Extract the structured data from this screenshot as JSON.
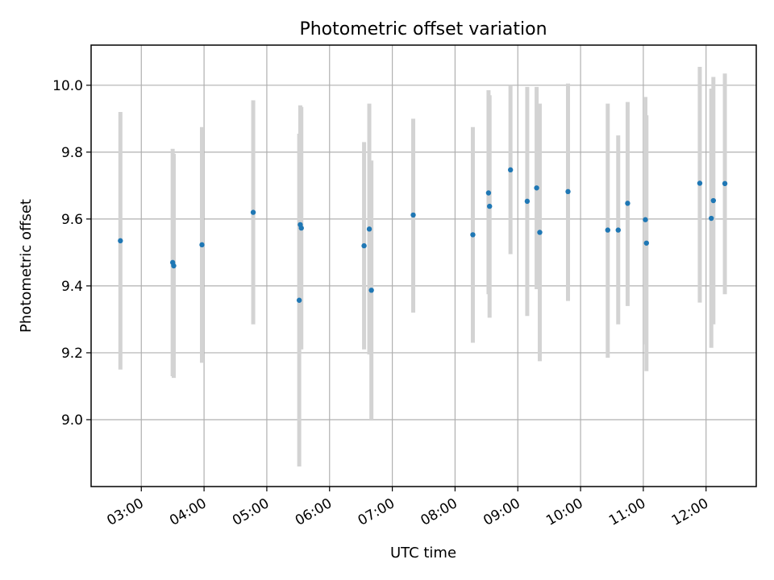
{
  "chart_data": {
    "type": "scatter",
    "title": "Photometric offset variation",
    "xlabel": "UTC time",
    "ylabel": "Photometric offset",
    "x_tick_labels": [
      "03:00",
      "04:00",
      "05:00",
      "06:00",
      "07:00",
      "08:00",
      "09:00",
      "10:00",
      "11:00",
      "12:00"
    ],
    "x_ticks_hours": [
      3,
      4,
      5,
      6,
      7,
      8,
      9,
      10,
      11,
      12
    ],
    "y_tick_labels": [
      "9.0",
      "9.2",
      "9.4",
      "9.6",
      "9.8",
      "10.0"
    ],
    "y_ticks": [
      9.0,
      9.2,
      9.4,
      9.6,
      9.8,
      10.0
    ],
    "xlim": [
      "02:12",
      "12:48"
    ],
    "ylim": [
      8.8,
      10.12
    ],
    "grid": true,
    "point_color": "#1f77b4",
    "errorbar_color": "#d3d3d3",
    "points": [
      {
        "time": "02:40",
        "y": 9.535,
        "lo": 9.15,
        "hi": 9.92
      },
      {
        "time": "03:30",
        "y": 9.47,
        "lo": 9.13,
        "hi": 9.81
      },
      {
        "time": "03:31",
        "y": 9.46,
        "lo": 9.125,
        "hi": 9.795
      },
      {
        "time": "03:58",
        "y": 9.523,
        "lo": 9.17,
        "hi": 9.875
      },
      {
        "time": "04:47",
        "y": 9.62,
        "lo": 9.285,
        "hi": 9.955
      },
      {
        "time": "05:31",
        "y": 9.357,
        "lo": 8.86,
        "hi": 9.855
      },
      {
        "time": "05:32",
        "y": 9.583,
        "lo": 9.225,
        "hi": 9.94
      },
      {
        "time": "05:33",
        "y": 9.573,
        "lo": 9.21,
        "hi": 9.935
      },
      {
        "time": "06:33",
        "y": 9.52,
        "lo": 9.21,
        "hi": 9.83
      },
      {
        "time": "06:38",
        "y": 9.57,
        "lo": 9.195,
        "hi": 9.945
      },
      {
        "time": "06:40",
        "y": 9.387,
        "lo": 9.0,
        "hi": 9.775
      },
      {
        "time": "07:20",
        "y": 9.612,
        "lo": 9.32,
        "hi": 9.9
      },
      {
        "time": "08:17",
        "y": 9.553,
        "lo": 9.23,
        "hi": 9.875
      },
      {
        "time": "08:32",
        "y": 9.678,
        "lo": 9.375,
        "hi": 9.985
      },
      {
        "time": "08:33",
        "y": 9.638,
        "lo": 9.305,
        "hi": 9.97
      },
      {
        "time": "08:53",
        "y": 9.747,
        "lo": 9.495,
        "hi": 10.0
      },
      {
        "time": "09:09",
        "y": 9.653,
        "lo": 9.31,
        "hi": 9.995
      },
      {
        "time": "09:18",
        "y": 9.693,
        "lo": 9.39,
        "hi": 9.995
      },
      {
        "time": "09:21",
        "y": 9.56,
        "lo": 9.175,
        "hi": 9.945
      },
      {
        "time": "09:48",
        "y": 9.682,
        "lo": 9.355,
        "hi": 10.005
      },
      {
        "time": "10:26",
        "y": 9.567,
        "lo": 9.185,
        "hi": 9.945
      },
      {
        "time": "10:36",
        "y": 9.567,
        "lo": 9.285,
        "hi": 9.85
      },
      {
        "time": "10:45",
        "y": 9.647,
        "lo": 9.34,
        "hi": 9.95
      },
      {
        "time": "11:02",
        "y": 9.598,
        "lo": 9.225,
        "hi": 9.965
      },
      {
        "time": "11:03",
        "y": 9.528,
        "lo": 9.145,
        "hi": 9.91
      },
      {
        "time": "11:54",
        "y": 9.707,
        "lo": 9.35,
        "hi": 10.055
      },
      {
        "time": "12:05",
        "y": 9.602,
        "lo": 9.215,
        "hi": 9.99
      },
      {
        "time": "12:07",
        "y": 9.655,
        "lo": 9.285,
        "hi": 10.025
      },
      {
        "time": "12:18",
        "y": 9.706,
        "lo": 9.375,
        "hi": 10.035
      }
    ]
  }
}
